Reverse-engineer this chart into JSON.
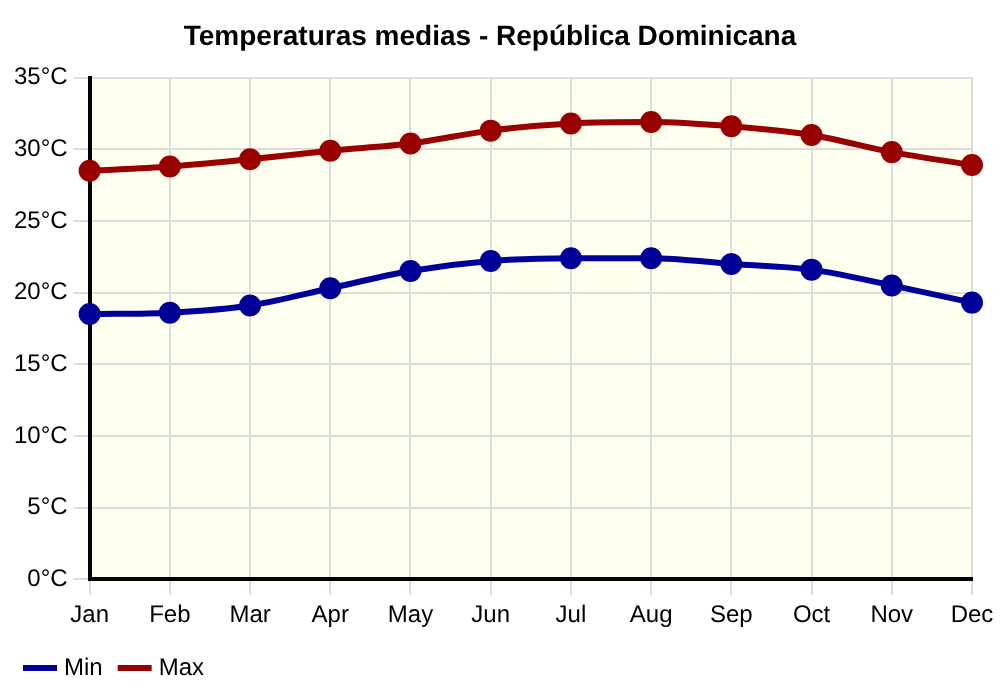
{
  "chart_data": {
    "type": "line",
    "title": "Temperaturas medias - República Dominicana",
    "categories": [
      "Jan",
      "Feb",
      "Mar",
      "Apr",
      "May",
      "Jun",
      "Jul",
      "Aug",
      "Sep",
      "Oct",
      "Nov",
      "Dec"
    ],
    "series": [
      {
        "name": "Min",
        "color": "#000099",
        "values": [
          18.5,
          18.6,
          19.1,
          20.3,
          21.5,
          22.2,
          22.4,
          22.4,
          22.0,
          21.6,
          20.5,
          19.3
        ]
      },
      {
        "name": "Max",
        "color": "#990000",
        "values": [
          28.5,
          28.8,
          29.3,
          29.9,
          30.4,
          31.3,
          31.8,
          31.9,
          31.6,
          31.0,
          29.8,
          28.9
        ]
      }
    ],
    "ylim": [
      0,
      35
    ],
    "yticks": [
      {
        "value": 0,
        "label": "0°C"
      },
      {
        "value": 5,
        "label": "5°C"
      },
      {
        "value": 10,
        "label": "10°C"
      },
      {
        "value": 15,
        "label": "15°C"
      },
      {
        "value": 20,
        "label": "20°C"
      },
      {
        "value": 25,
        "label": "25°C"
      },
      {
        "value": 30,
        "label": "30°C"
      },
      {
        "value": 35,
        "label": "35°C"
      }
    ],
    "grid": true,
    "legend": "bottom left",
    "marker": "circle",
    "line_style": "solid"
  }
}
